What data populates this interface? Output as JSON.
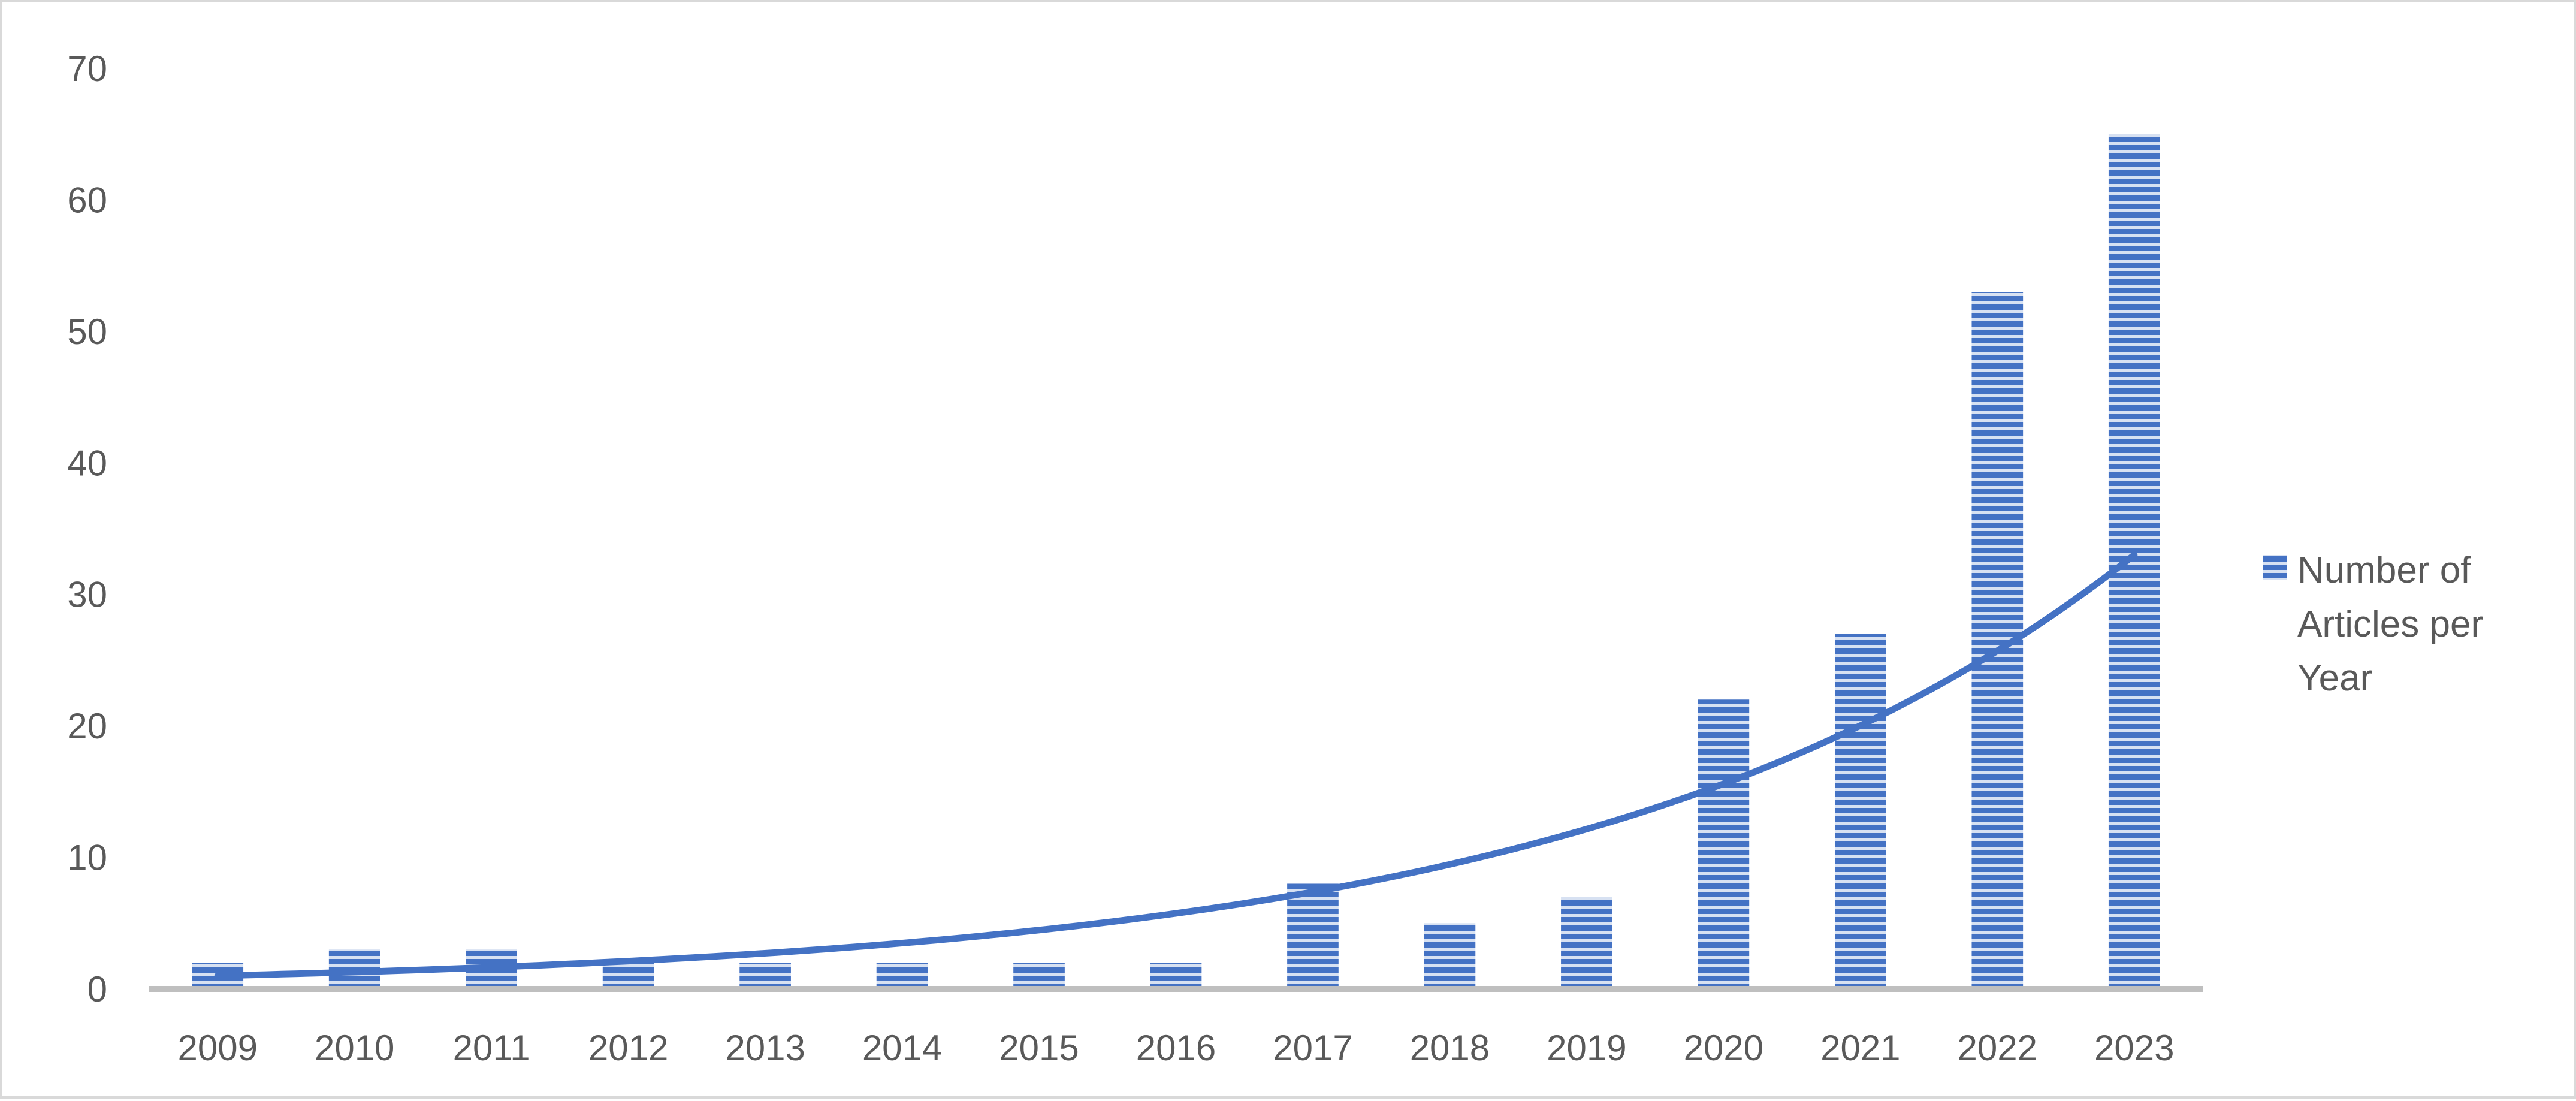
{
  "chart_data": {
    "type": "bar",
    "categories": [
      "2009",
      "2010",
      "2011",
      "2012",
      "2013",
      "2014",
      "2015",
      "2016",
      "2017",
      "2018",
      "2019",
      "2020",
      "2021",
      "2022",
      "2023"
    ],
    "series": [
      {
        "name": "Number of Articles per Year",
        "values": [
          2,
          3,
          3,
          2,
          2,
          2,
          2,
          2,
          8,
          5,
          7,
          22,
          27,
          53,
          65
        ],
        "color": "#4472c4",
        "pattern": "horizontal-stripes"
      }
    ],
    "trendline": {
      "type": "exponential",
      "color": "#4472c4",
      "start_value": 1.0,
      "end_value": 33.0
    },
    "ylim": [
      0,
      70
    ],
    "yticks": [
      0,
      10,
      20,
      30,
      40,
      50,
      60,
      70
    ],
    "grid": false,
    "legend": {
      "position": "right",
      "lines": [
        "Number of",
        "Articles per",
        "Year"
      ]
    },
    "title": "",
    "xlabel": "",
    "ylabel": ""
  }
}
